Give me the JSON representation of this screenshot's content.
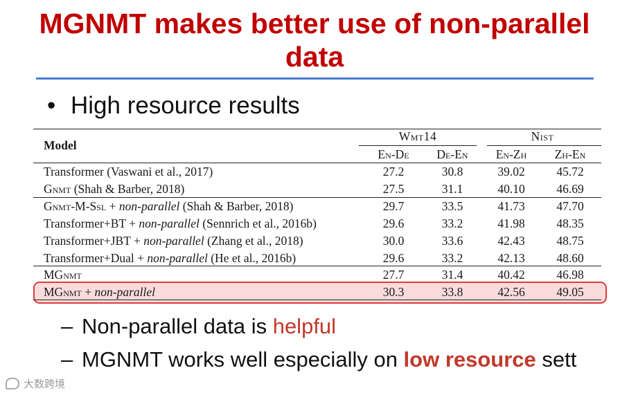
{
  "slide": {
    "title": "MGNMT makes better use of non-parallel data",
    "bullet": "High resource results",
    "sub1_pre": "Non-parallel data is ",
    "sub1_hl": "helpful",
    "sub2_pre": "MGNMT works well especially on ",
    "sub2_hl": "low resource",
    "sub2_post": " sett",
    "dash": "–",
    "dot": "•",
    "watermark": "大数跨境"
  },
  "table": {
    "model_header": "Model",
    "groups": [
      "Wmt14",
      "Nist"
    ],
    "columns": [
      "En-De",
      "De-En",
      "En-Zh",
      "Zh-En"
    ],
    "rows": [
      {
        "model": "Transformer (Vaswani et al., 2017)",
        "values": [
          "27.2",
          "30.8",
          "39.02",
          "45.72"
        ]
      },
      {
        "model": "GNMT (Shah & Barber, 2018)",
        "values": [
          "27.5",
          "31.1",
          "40.10",
          "46.69"
        ]
      },
      {
        "model": "GNMT-M-SSL + non-parallel (Shah & Barber, 2018)",
        "values": [
          "29.7",
          "33.5",
          "41.73",
          "47.70"
        ]
      },
      {
        "model": "Transformer+BT + non-parallel (Sennrich et al., 2016b)",
        "values": [
          "29.6",
          "33.2",
          "41.98",
          "48.35"
        ]
      },
      {
        "model": "Transformer+JBT + non-parallel (Zhang et al., 2018)",
        "values": [
          "30.0",
          "33.6",
          "42.43",
          "48.75"
        ]
      },
      {
        "model": "Transformer+Dual + non-parallel (He et al., 2016b)",
        "values": [
          "29.6",
          "33.2",
          "42.13",
          "48.60"
        ]
      },
      {
        "model": "MGNMT",
        "values": [
          "27.7",
          "31.4",
          "40.42",
          "46.98"
        ]
      },
      {
        "model": "MGNMT + non-parallel",
        "values": [
          "30.3",
          "33.8",
          "42.56",
          "49.05"
        ]
      }
    ],
    "model_parts": [
      [
        {
          "t": "Transformer (Vaswani et al., 2017)"
        }
      ],
      [
        {
          "t": "G"
        },
        {
          "t": "nmt",
          "sc": true
        },
        {
          "t": " (Shah & Barber, 2018)"
        }
      ],
      [
        {
          "t": "G"
        },
        {
          "t": "nmt",
          "sc": true
        },
        {
          "t": "-M-S"
        },
        {
          "t": "sl",
          "sc": true
        },
        {
          "t": " + "
        },
        {
          "t": "non-parallel",
          "i": true
        },
        {
          "t": " (Shah & Barber, 2018)"
        }
      ],
      [
        {
          "t": "Transformer+BT + "
        },
        {
          "t": "non-parallel",
          "i": true
        },
        {
          "t": " (Sennrich et al., 2016b)"
        }
      ],
      [
        {
          "t": "Transformer+JBT + "
        },
        {
          "t": "non-parallel",
          "i": true
        },
        {
          "t": " (Zhang et al., 2018)"
        }
      ],
      [
        {
          "t": "Transformer+Dual + "
        },
        {
          "t": "non-parallel",
          "i": true
        },
        {
          "t": " (He et al., 2016b)"
        }
      ],
      [
        {
          "t": "MG"
        },
        {
          "t": "nmt",
          "sc": true
        }
      ],
      [
        {
          "t": "MG"
        },
        {
          "t": "nmt",
          "sc": true
        },
        {
          "t": " + "
        },
        {
          "t": "non-parallel",
          "i": true
        }
      ]
    ]
  }
}
